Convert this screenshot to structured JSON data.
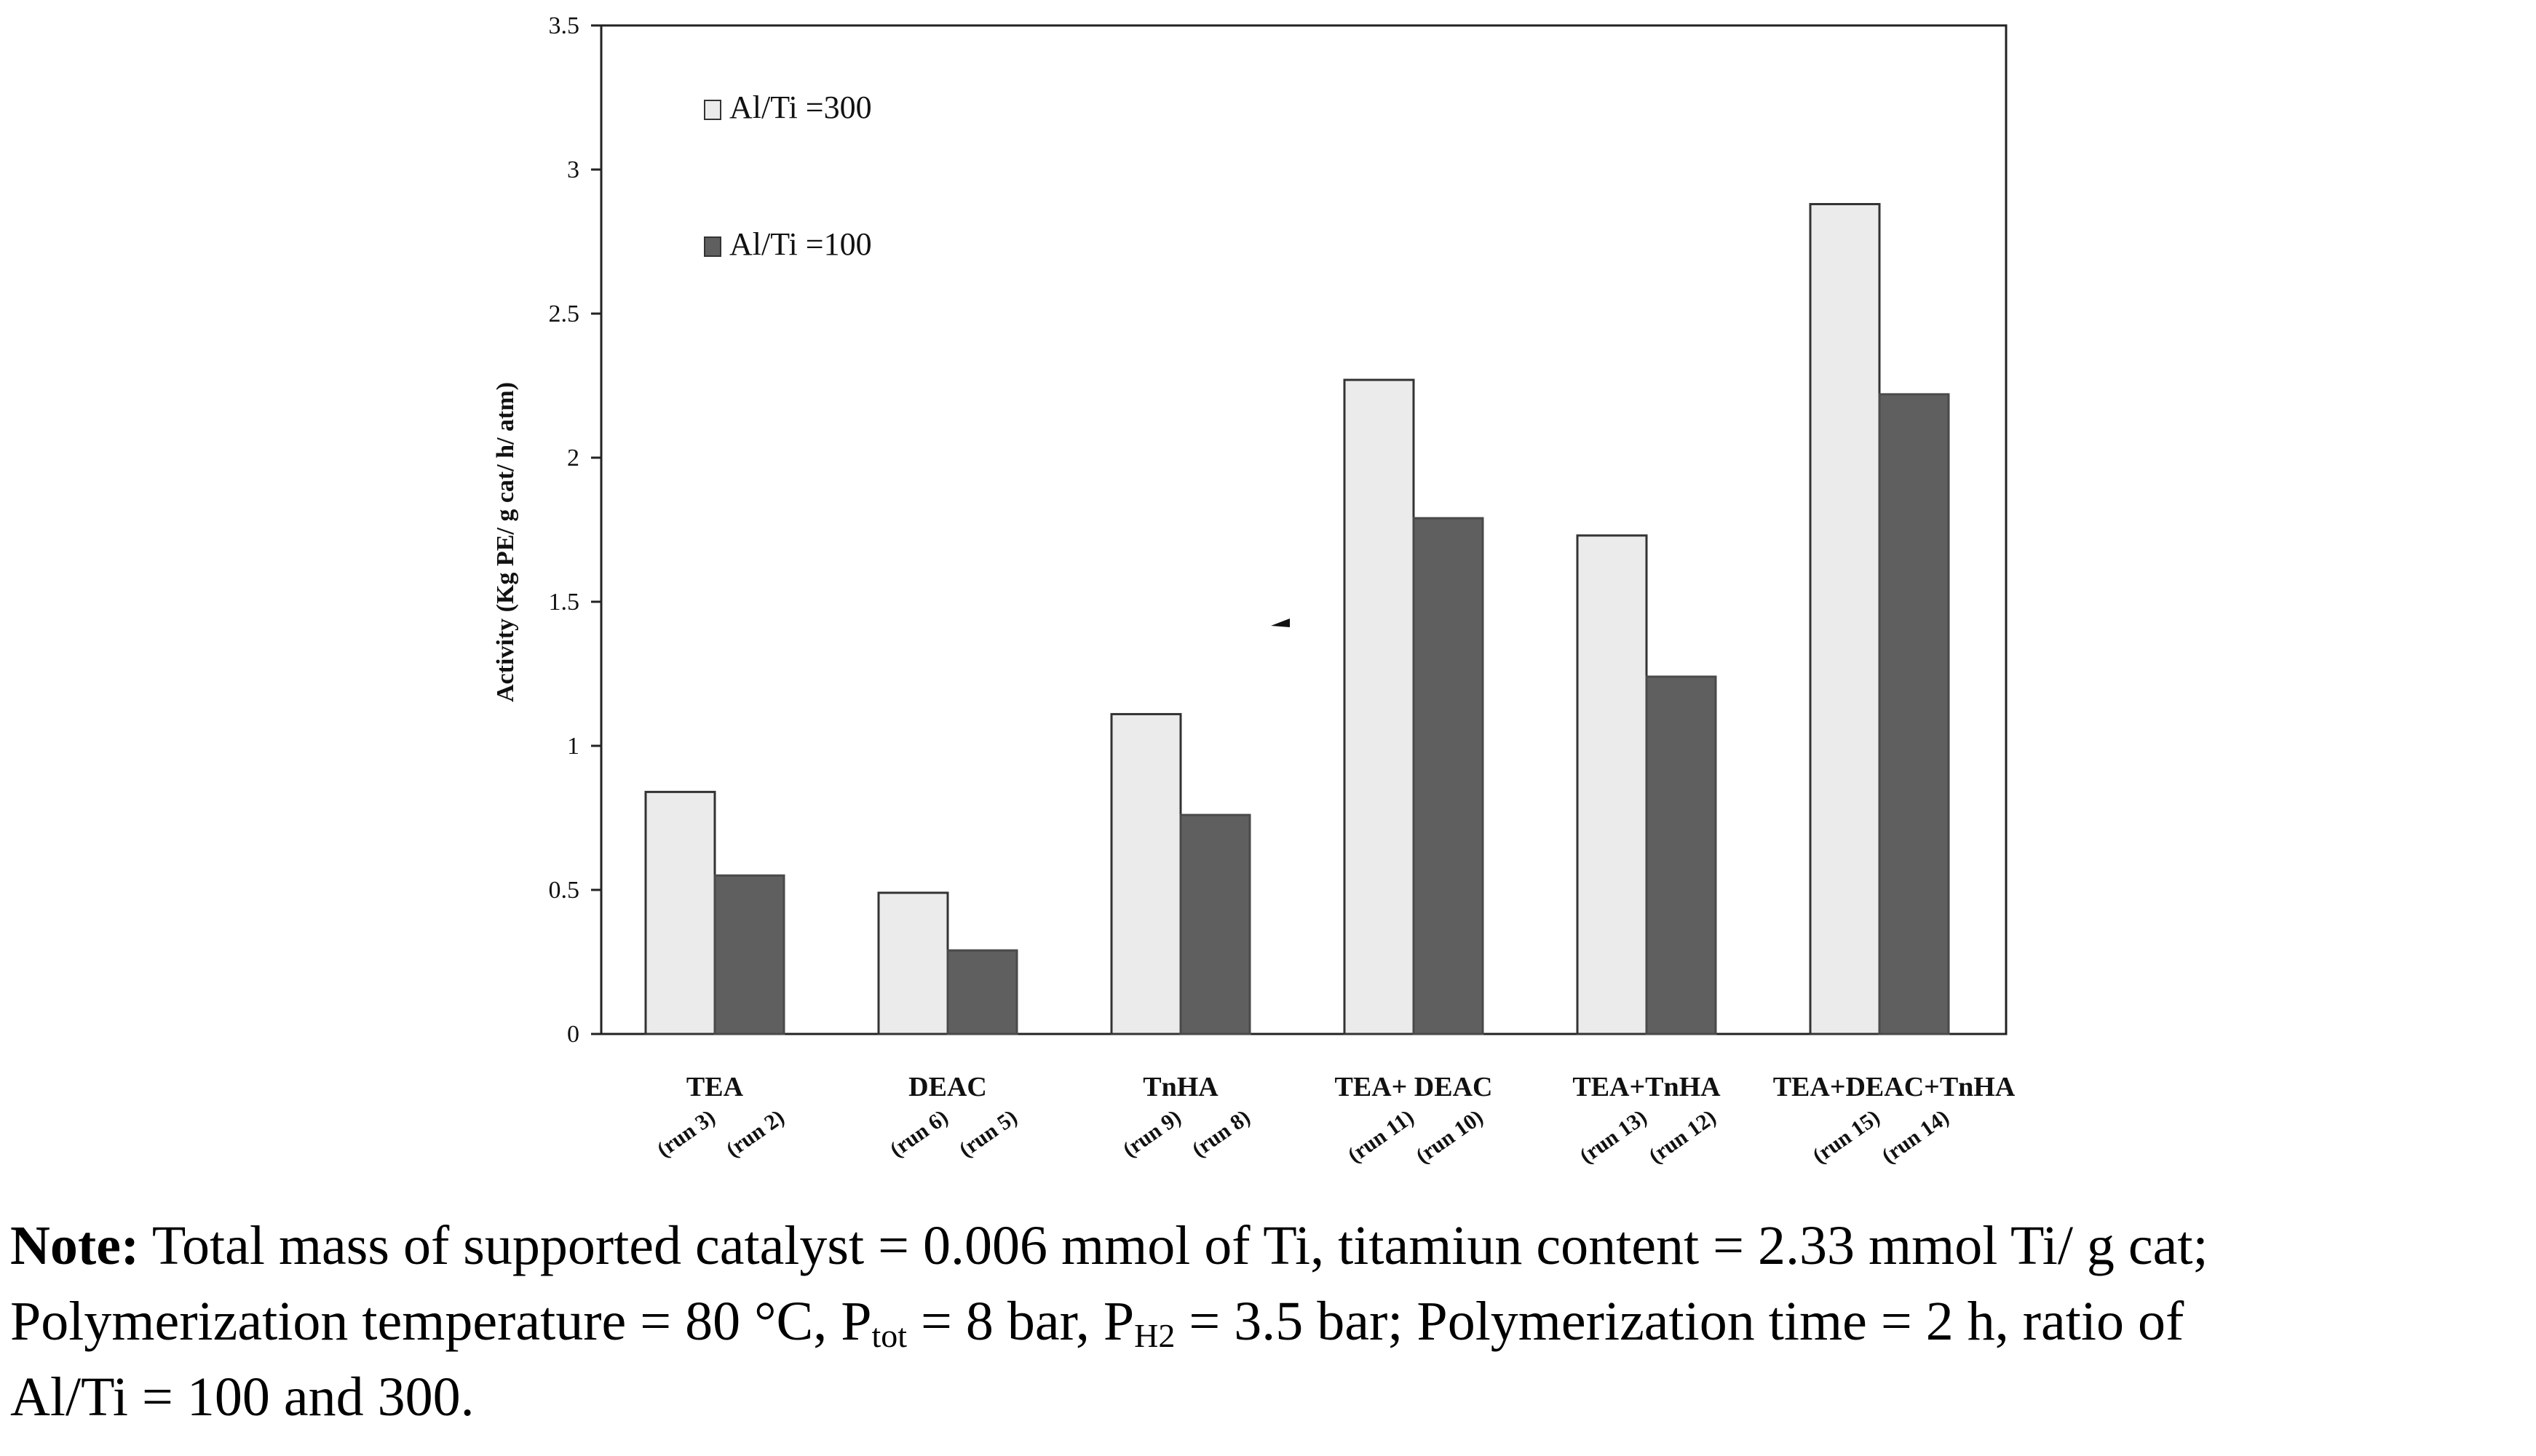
{
  "chart_data": {
    "type": "bar",
    "title": "",
    "xlabel": "",
    "ylabel": "Activity (Kg PE/ g cat/ h/ atm)",
    "ylim": [
      0,
      3.5
    ],
    "yticks": [
      "0",
      "0.5",
      "1",
      "1.5",
      "2",
      "2.5",
      "3",
      "3.5"
    ],
    "categories": [
      "TEA",
      "DEAC",
      "TnHA",
      "TEA+ DEAC",
      "TEA+TnHA",
      "TEA+DEAC+TnHA"
    ],
    "run_labels": [
      [
        "(run 3)",
        "(run 2)"
      ],
      [
        "(run 6)",
        "(run 5)"
      ],
      [
        "(run 9)",
        "(run 8)"
      ],
      [
        "(run 11)",
        "(run 10)"
      ],
      [
        "(run 13)",
        "(run 12)"
      ],
      [
        "(run 15)",
        "(run 14)"
      ]
    ],
    "series": [
      {
        "name": "Al/Ti =300",
        "color": "#ebebeb",
        "values": [
          0.84,
          0.49,
          1.11,
          2.27,
          1.73,
          2.88
        ]
      },
      {
        "name": "Al/Ti =100",
        "color": "#5f5f5f",
        "values": [
          0.55,
          0.29,
          0.76,
          1.79,
          1.24,
          2.22
        ]
      }
    ],
    "legend_position": "top-left",
    "grid": false
  },
  "note": {
    "label": "Note:",
    "line1": " Total mass of supported catalyst = 0.006 mmol of Ti, titamiun content = 2.33 mmol Ti/ g cat;",
    "line2a": "Polymerization temperature = 80 °C, P",
    "sub_tot": "tot",
    "line2b": " = 8 bar, P",
    "sub_h2": "H2",
    "line2c": " = 3.5 bar; Polymerization time = 2 h, ratio of",
    "line3": "Al/Ti = 100 and 300."
  }
}
